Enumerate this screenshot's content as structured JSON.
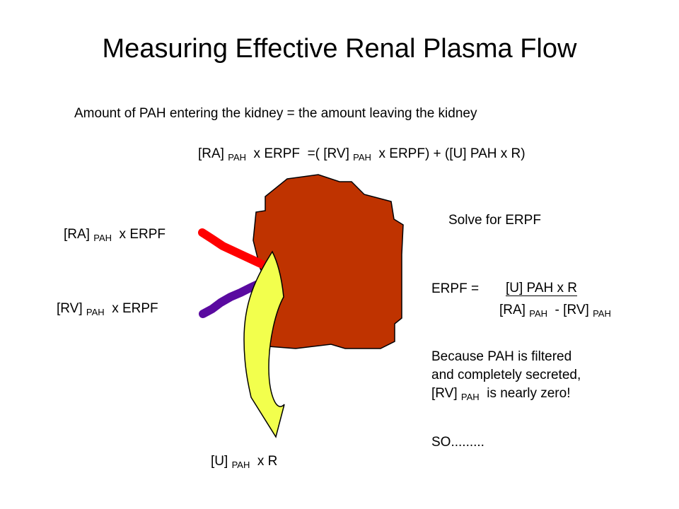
{
  "title": "Measuring Effective Renal Plasma Flow",
  "intro": "Amount of PAH entering the kidney = the amount leaving the kidney",
  "main_equation": {
    "a1": "[RA]",
    "s1": "PAH",
    "a2": " x ERPF  =( [RV]",
    "s2": "PAH",
    "a3": " x ERPF) + ([U] PAH x R)"
  },
  "labels": {
    "ra": {
      "a": "[RA]",
      "sub": "PAH",
      "b": " x ERPF"
    },
    "rv": {
      "a": "[RV]",
      "sub": "PAH",
      "b": " x ERPF"
    },
    "u": {
      "a": "[U]",
      "sub": "PAH",
      "b": " x R"
    }
  },
  "solve": "Solve for ERPF",
  "erpf": {
    "left": "ERPF =",
    "numerator": "[U] PAH x R",
    "den_a": "[RA]",
    "den_s1": "PAH",
    "den_b": " - [RV]",
    "den_s2": "PAH"
  },
  "because": {
    "line1": "Because PAH is filtered",
    "line2": "and completely secreted,",
    "line3_a": "[RV]",
    "line3_sub": "PAH",
    "line3_b": " is nearly zero!"
  },
  "so": "SO.........",
  "colors": {
    "kidney": "#bf3300",
    "artery": "#ff0000",
    "vein": "#5a0aa0",
    "ureter": "#f2ff4d"
  }
}
